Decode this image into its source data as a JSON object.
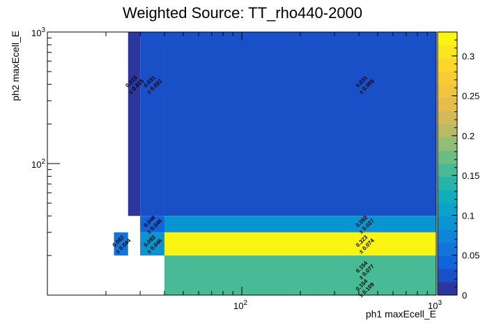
{
  "chart_data": {
    "type": "heatmap",
    "title": "Weighted Source: TT_rho440-2000",
    "xlabel": "ph1 maxEcell_E",
    "ylabel": "ph2 maxEcell_E",
    "x_scale": "log",
    "y_scale": "log",
    "xlim": [
      10,
      1000
    ],
    "ylim": [
      10,
      1000
    ],
    "x_major_ticks": [
      {
        "value": 100,
        "label": "10^2"
      },
      {
        "value": 1000,
        "label": "10^3"
      }
    ],
    "y_major_ticks": [
      {
        "value": 100,
        "label": "10^2"
      },
      {
        "value": 1000,
        "label": "10^3"
      }
    ],
    "zlim": [
      0,
      0.33
    ],
    "colorbar_ticks": [
      "0",
      "0.05",
      "0.1",
      "0.15",
      "0.2",
      "0.25",
      "0.3"
    ],
    "colorbar_tick_values": [
      0,
      0.05,
      0.1,
      0.15,
      0.2,
      0.25,
      0.3
    ],
    "grid": false,
    "cells": [
      {
        "x0": 26,
        "x1": 30,
        "y0": 40,
        "y1": 1000,
        "value": 0.015,
        "label": "0.015",
        "error": "± 0.015"
      },
      {
        "x0": 30,
        "x1": 40,
        "y0": 40,
        "y1": 1000,
        "value": 0.031,
        "label": "0.031",
        "error": "± 0.022"
      },
      {
        "x0": 40,
        "x1": 1000,
        "y0": 40,
        "y1": 1000,
        "value": 0.031,
        "label": "0.031",
        "error": "± 0.005"
      },
      {
        "x0": 30,
        "x1": 40,
        "y0": 30,
        "y1": 40,
        "value": 0.046,
        "label": "0.046",
        "error": "± 0.046"
      },
      {
        "x0": 40,
        "x1": 1000,
        "y0": 30,
        "y1": 40,
        "value": 0.092,
        "label": "0.092",
        "error": "± 0.027"
      },
      {
        "x0": 22,
        "x1": 26,
        "y0": 20,
        "y1": 30,
        "value": 0.062,
        "label": "0.062",
        "error": "± 0.044"
      },
      {
        "x0": 30,
        "x1": 40,
        "y0": 20,
        "y1": 30,
        "value": 0.092,
        "label": "0.092",
        "error": "± 0.046"
      },
      {
        "x0": 40,
        "x1": 1000,
        "y0": 20,
        "y1": 30,
        "value": 0.323,
        "label": "0.323",
        "error": "± 0.074"
      },
      {
        "x0": 40,
        "x1": 1000,
        "y0": 10,
        "y1": 20,
        "value": 0.154,
        "label": "0.154",
        "error": "± 0.077"
      },
      {
        "x0": 40,
        "x1": 1000,
        "y0": 10,
        "y1": 20,
        "value": 0.154,
        "label": "0.154",
        "error": "± 0.109"
      }
    ]
  }
}
